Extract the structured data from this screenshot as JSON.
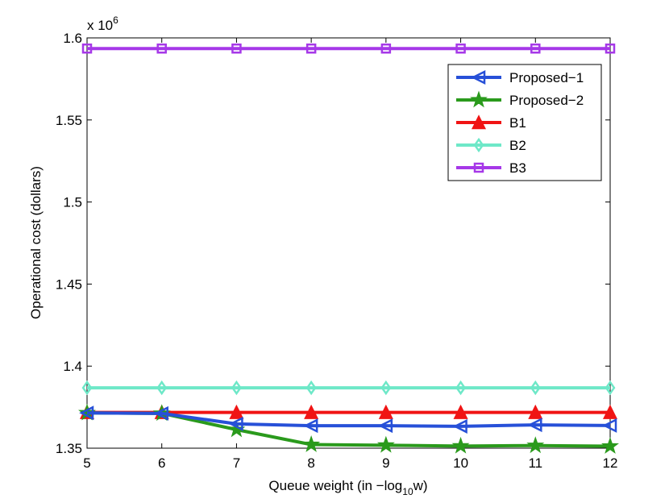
{
  "chart_data": {
    "type": "line",
    "title": "",
    "xlabel": "Queue weight (in −log",
    "xlabel_sub": "10",
    "xlabel_tail": "w)",
    "ylabel": "Operational cost (dollars)",
    "y_multiplier": "x 10",
    "y_multiplier_exp": "6",
    "xlim": [
      5,
      12
    ],
    "ylim": [
      1.35,
      1.6
    ],
    "x": [
      5,
      6,
      7,
      8,
      9,
      10,
      11,
      12
    ],
    "x_ticks": [
      "5",
      "6",
      "7",
      "8",
      "9",
      "10",
      "11",
      "12"
    ],
    "y_tick_values": [
      1.35,
      1.4,
      1.45,
      1.5,
      1.55,
      1.6
    ],
    "y_ticks": [
      "1.35",
      "1.4",
      "1.45",
      "1.5",
      "1.55",
      "1.6"
    ],
    "legend_position": "top-right",
    "series": [
      {
        "name": "Proposed−1",
        "color": "#2750d8",
        "marker": "triangle-left",
        "values": [
          1.3715,
          1.3712,
          1.3648,
          1.3637,
          1.3637,
          1.3633,
          1.3642,
          1.3638
        ]
      },
      {
        "name": "Proposed−2",
        "color": "#2a9a1c",
        "marker": "star",
        "values": [
          1.3715,
          1.3712,
          1.3613,
          1.3522,
          1.3518,
          1.3513,
          1.3516,
          1.3512
        ]
      },
      {
        "name": "B1",
        "color": "#f01414",
        "marker": "triangle-up",
        "values": [
          1.3718,
          1.3718,
          1.3718,
          1.3718,
          1.3718,
          1.3718,
          1.3718,
          1.3718
        ]
      },
      {
        "name": "B2",
        "color": "#6ee8c8",
        "marker": "diamond",
        "values": [
          1.3868,
          1.3868,
          1.3868,
          1.3868,
          1.3868,
          1.3868,
          1.3868,
          1.3868
        ]
      },
      {
        "name": "B3",
        "color": "#a638e8",
        "marker": "square",
        "values": [
          1.5935,
          1.5935,
          1.5935,
          1.5935,
          1.5935,
          1.5935,
          1.5935,
          1.5935
        ]
      }
    ]
  }
}
